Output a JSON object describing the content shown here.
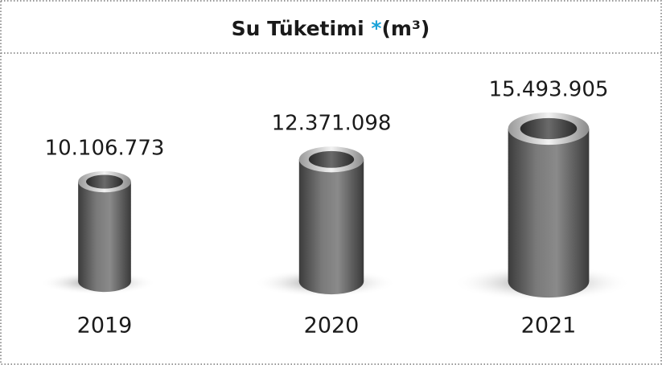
{
  "chart_data": {
    "type": "bar",
    "title": "Su Tüketimi",
    "title_mark": "*",
    "unit": "(m³)",
    "categories": [
      "2019",
      "2020",
      "2021"
    ],
    "values": [
      10106773,
      12371098,
      15493905
    ],
    "value_labels": [
      "10.106.773",
      "12.371.098",
      "15.493.905"
    ],
    "color": "#6b6b6b",
    "title_mark_color": "#1aa3d9"
  }
}
